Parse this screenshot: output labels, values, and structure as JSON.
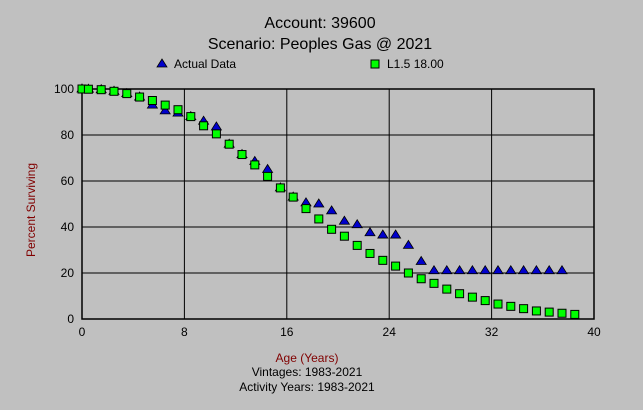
{
  "chart_data": {
    "type": "scatter",
    "title": "Account: 39600",
    "subtitle": "Scenario: Peoples Gas @ 2021",
    "xlabel": "Age (Years)",
    "ylabel": "Percent Surviving",
    "footer": [
      "Vintages: 1983-2021",
      "Activity Years: 1983-2021"
    ],
    "xlim": [
      0,
      40
    ],
    "ylim": [
      0,
      100
    ],
    "xticks": [
      0,
      8,
      16,
      24,
      32,
      40
    ],
    "yticks": [
      0,
      20,
      40,
      60,
      80,
      100
    ],
    "grid": true,
    "legend_position": "top",
    "series": [
      {
        "name": "Actual Data",
        "marker": "triangle",
        "color": "#0000cc",
        "x": [
          0,
          0.5,
          1.5,
          2.5,
          3.5,
          4.5,
          5.5,
          6.5,
          7.5,
          8.5,
          9.5,
          10.5,
          11.5,
          12.5,
          13.5,
          14.5,
          15.5,
          16.5,
          17.5,
          18.5,
          19.5,
          20.5,
          21.5,
          22.5,
          23.5,
          24.5,
          25.5,
          26.5,
          27.5,
          28.5,
          29.5,
          30.5,
          31.5,
          32.5,
          33.5,
          34.5,
          35.5,
          36.5,
          37.5
        ],
        "y": [
          100,
          99.9,
          99.7,
          99,
          98,
          96.5,
          93,
          90.5,
          89.5,
          88,
          86,
          83.5,
          76,
          71.5,
          68.5,
          65,
          57,
          53,
          50.5,
          50,
          47,
          42.5,
          41,
          37.5,
          36.5,
          36.5,
          32,
          25,
          21,
          21,
          21,
          21,
          21,
          21,
          21,
          21,
          21,
          21,
          21
        ]
      },
      {
        "name": "L1.5 18.00",
        "marker": "square",
        "color": "#00ff00",
        "x": [
          0,
          0.5,
          1.5,
          2.5,
          3.5,
          4.5,
          5.5,
          6.5,
          7.5,
          8.5,
          9.5,
          10.5,
          11.5,
          12.5,
          13.5,
          14.5,
          15.5,
          16.5,
          17.5,
          18.5,
          19.5,
          20.5,
          21.5,
          22.5,
          23.5,
          24.5,
          25.5,
          26.5,
          27.5,
          28.5,
          29.5,
          30.5,
          31.5,
          32.5,
          33.5,
          34.5,
          35.5,
          36.5,
          37.5,
          38.5
        ],
        "y": [
          100,
          99.9,
          99.7,
          99,
          98,
          96.5,
          95,
          93,
          91,
          88,
          84,
          80.5,
          76,
          71.5,
          67,
          62,
          57,
          53,
          48,
          43.5,
          39,
          36,
          32,
          28.5,
          25.5,
          23,
          20,
          17.5,
          15.5,
          13,
          11,
          9.5,
          8,
          6.5,
          5.5,
          4.5,
          3.5,
          3,
          2.5,
          2
        ]
      }
    ]
  }
}
